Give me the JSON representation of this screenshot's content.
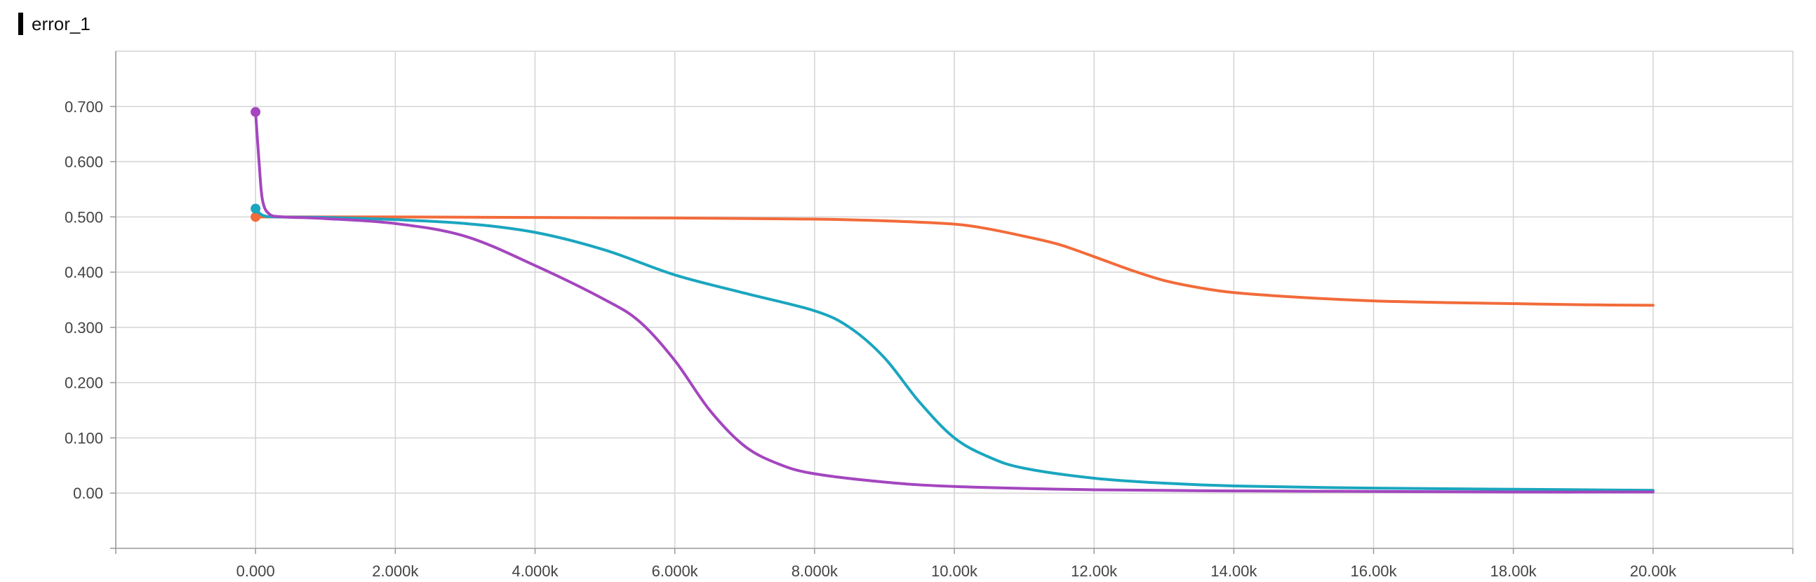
{
  "title": "error_1",
  "chart_data": {
    "type": "line",
    "title": "error_1",
    "xlabel": "",
    "ylabel": "",
    "xlim": [
      -2000,
      22000
    ],
    "ylim": [
      -0.1,
      0.8
    ],
    "grid": true,
    "x_ticks": [
      0,
      2000,
      4000,
      6000,
      8000,
      10000,
      12000,
      14000,
      16000,
      18000,
      20000
    ],
    "x_tick_labels": [
      "0.000",
      "2.000k",
      "4.000k",
      "6.000k",
      "8.000k",
      "10.00k",
      "12.00k",
      "14.00k",
      "16.00k",
      "18.00k",
      "20.00k"
    ],
    "y_ticks": [
      0,
      0.1,
      0.2,
      0.3,
      0.4,
      0.5,
      0.6,
      0.7
    ],
    "y_tick_labels": [
      "0.00",
      "0.100",
      "0.200",
      "0.300",
      "0.400",
      "0.500",
      "0.600",
      "0.700"
    ],
    "series": [
      {
        "color": "#f26b3a",
        "x": [
          0,
          100,
          300,
          1000,
          2000,
          4000,
          6000,
          8000,
          9000,
          10000,
          10500,
          11000,
          11500,
          12000,
          12500,
          13000,
          13500,
          14000,
          15000,
          16000,
          17000,
          18000,
          19000,
          20000
        ],
        "y": [
          0.5,
          0.5,
          0.5,
          0.5,
          0.5,
          0.499,
          0.498,
          0.496,
          0.493,
          0.487,
          0.478,
          0.465,
          0.45,
          0.428,
          0.405,
          0.385,
          0.372,
          0.363,
          0.354,
          0.348,
          0.345,
          0.343,
          0.341,
          0.34
        ]
      },
      {
        "color": "#1aa6bf",
        "x": [
          0,
          100,
          300,
          1000,
          2000,
          3000,
          4000,
          5000,
          6000,
          7000,
          8000,
          8500,
          9000,
          9500,
          10000,
          10500,
          11000,
          12000,
          13000,
          14000,
          16000,
          18000,
          20000
        ],
        "y": [
          0.515,
          0.503,
          0.5,
          0.499,
          0.495,
          0.488,
          0.472,
          0.44,
          0.395,
          0.362,
          0.33,
          0.3,
          0.245,
          0.165,
          0.1,
          0.065,
          0.045,
          0.027,
          0.018,
          0.013,
          0.009,
          0.007,
          0.005
        ]
      },
      {
        "color": "#a446bf",
        "x": [
          0,
          50,
          100,
          200,
          400,
          1000,
          2000,
          3000,
          4000,
          5000,
          5500,
          6000,
          6500,
          7000,
          7500,
          8000,
          9000,
          10000,
          12000,
          14000,
          16000,
          18000,
          20000
        ],
        "y": [
          0.69,
          0.6,
          0.53,
          0.505,
          0.5,
          0.497,
          0.488,
          0.465,
          0.412,
          0.35,
          0.31,
          0.24,
          0.15,
          0.085,
          0.052,
          0.035,
          0.02,
          0.012,
          0.006,
          0.004,
          0.003,
          0.002,
          0.002
        ]
      }
    ]
  }
}
